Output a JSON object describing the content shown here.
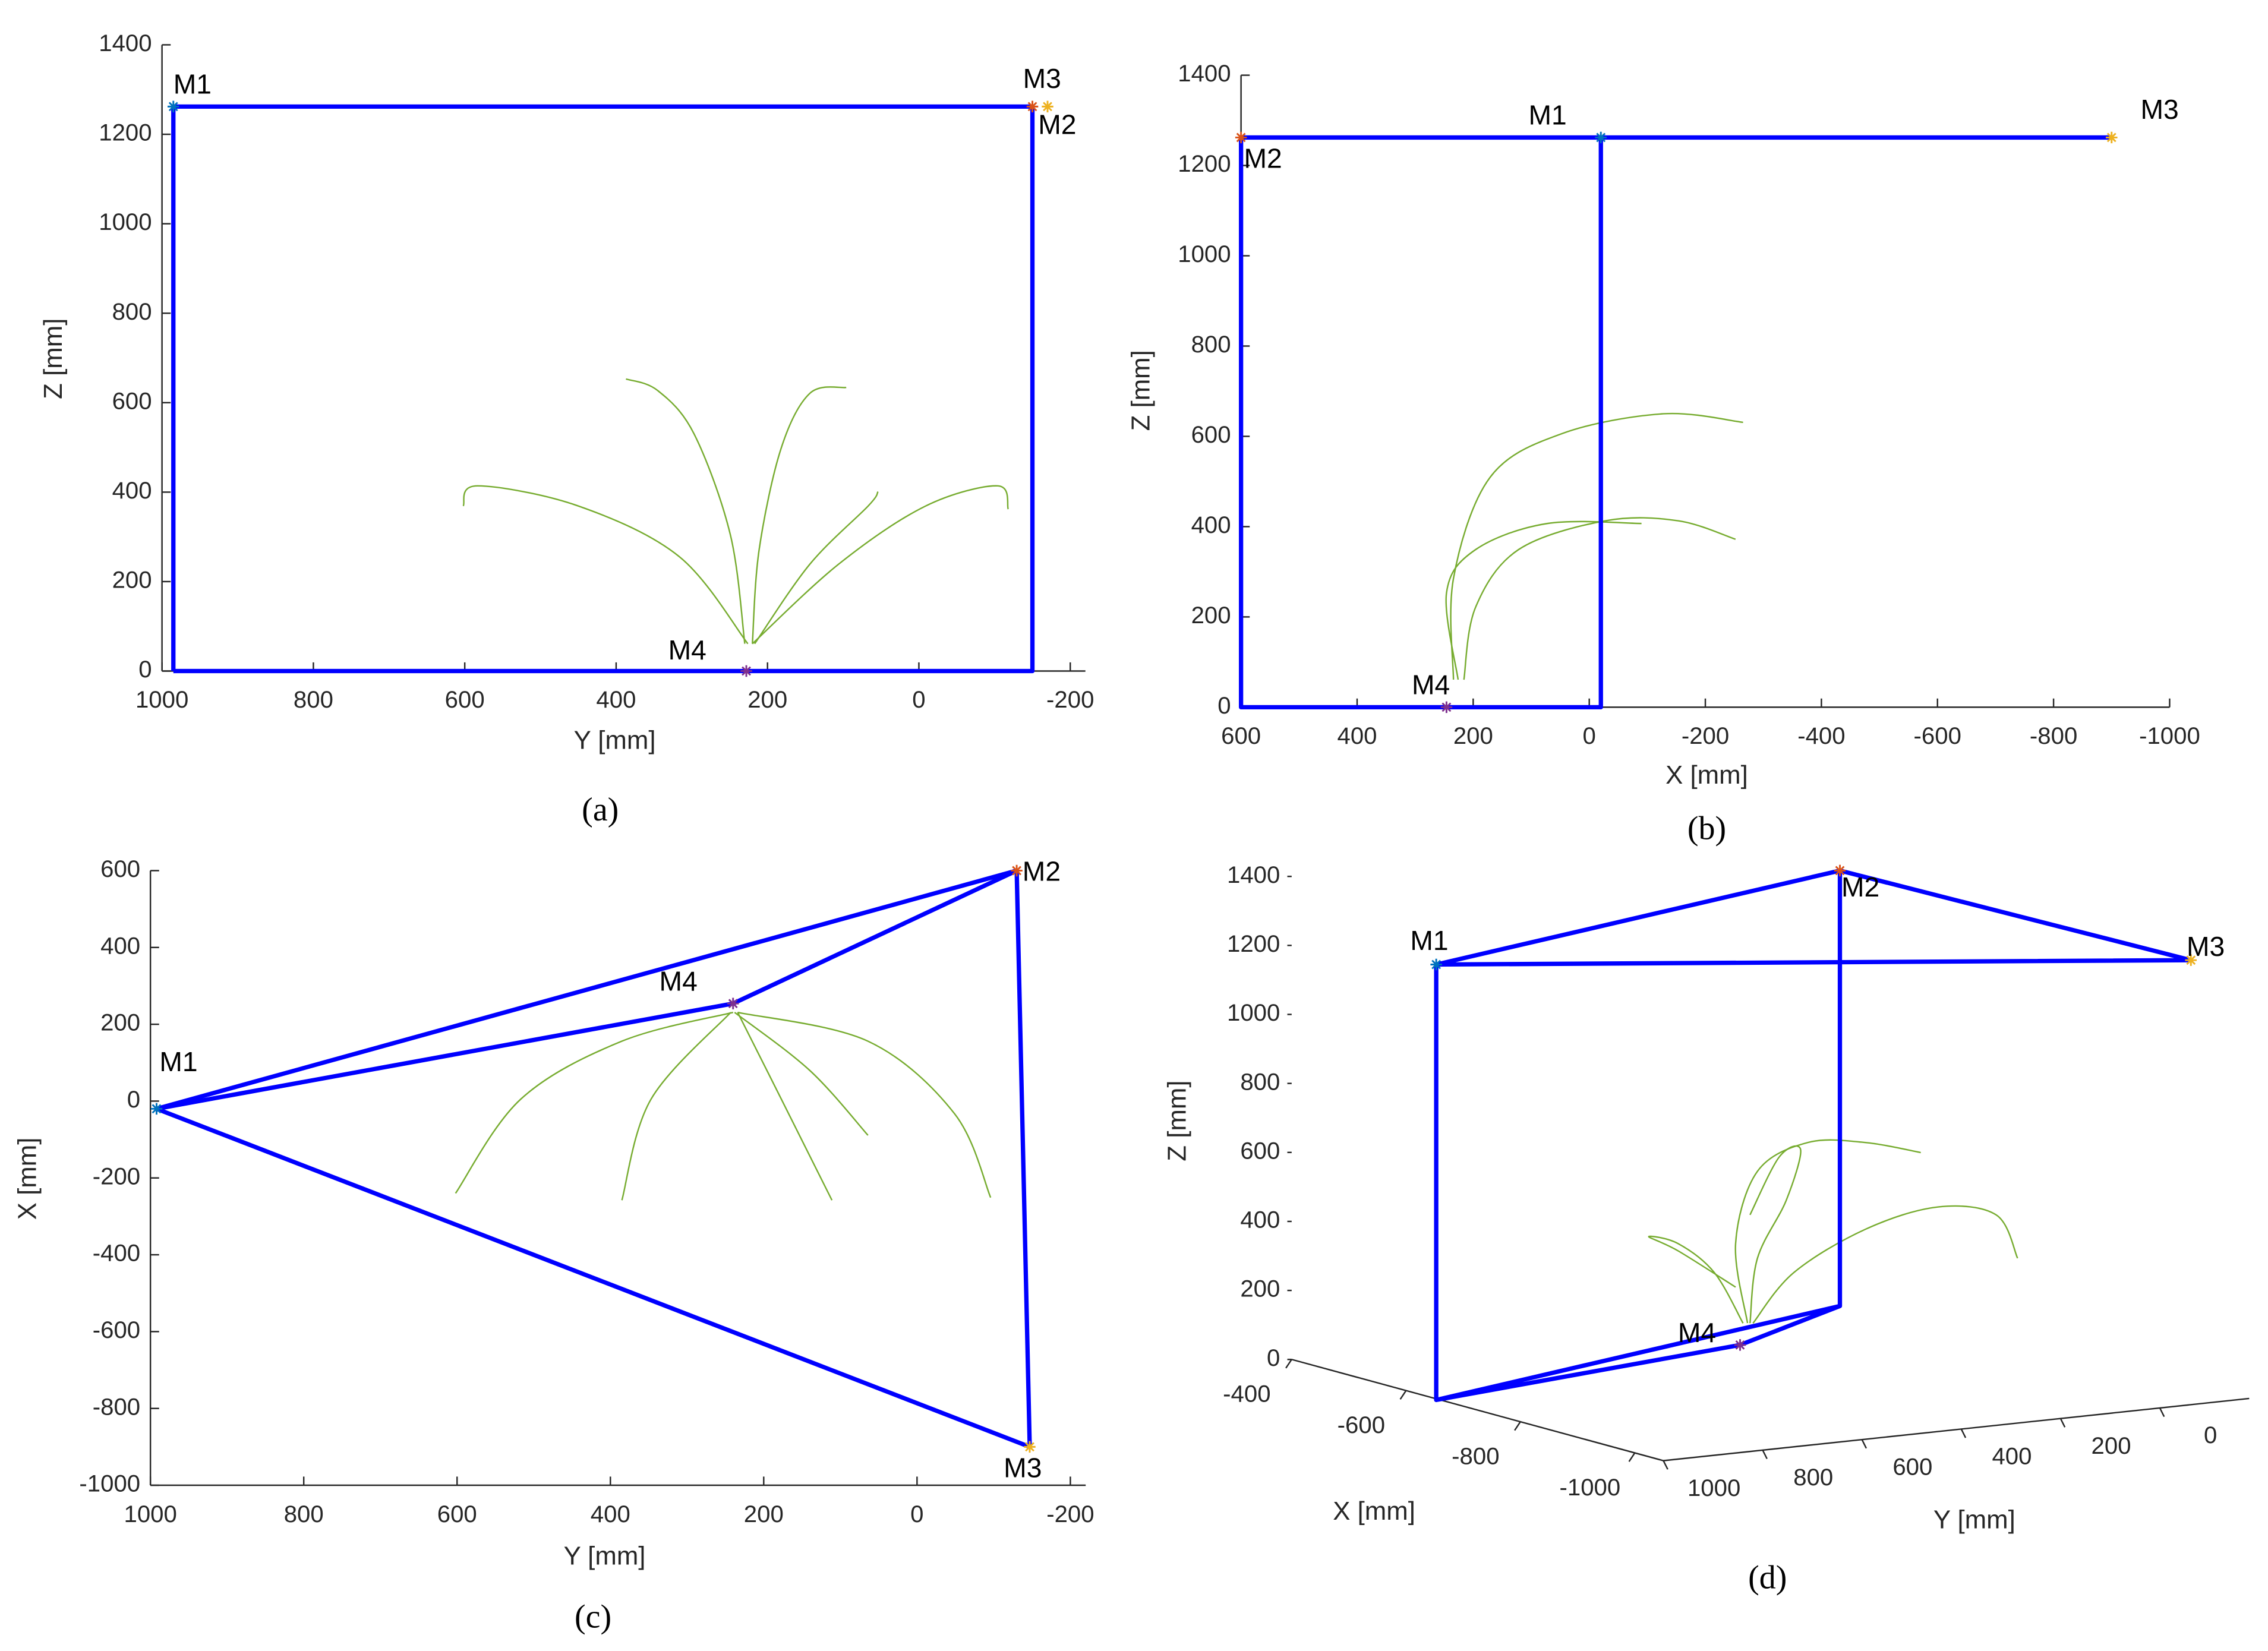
{
  "chart_data": [
    {
      "type": "line",
      "caption": "(a)",
      "xlabel": "Y [mm]",
      "ylabel": "Z [mm]",
      "xlim": [
        1000,
        -220
      ],
      "ylim": [
        0,
        1400
      ],
      "xticks": [
        1000,
        800,
        600,
        400,
        200,
        0,
        -200
      ],
      "yticks": [
        0,
        200,
        400,
        600,
        800,
        1000,
        1200,
        1400
      ],
      "lines": [
        {
          "color": "#0000ff",
          "x": [
            985,
            985,
            -150,
            -150,
            985
          ],
          "y": [
            0,
            1262,
            1262,
            0,
            0
          ]
        },
        {
          "color": "#77ac30",
          "x": [
            226,
            316,
            450,
            583,
            602
          ],
          "y": [
            61,
            255,
            369,
            414,
            369
          ]
        },
        {
          "color": "#77ac30",
          "x": [
            220,
            106,
            -9,
            -104,
            -118
          ],
          "y": [
            61,
            239,
            369,
            414,
            362
          ]
        },
        {
          "color": "#77ac30",
          "x": [
            230,
            249,
            297,
            345,
            387
          ],
          "y": [
            61,
            304,
            530,
            627,
            653
          ]
        },
        {
          "color": "#77ac30",
          "x": [
            220,
            211,
            182,
            144,
            96
          ],
          "y": [
            61,
            272,
            498,
            621,
            634
          ]
        },
        {
          "color": "#77ac30",
          "x": [
            217,
            144,
            67,
            54
          ],
          "y": [
            61,
            239,
            369,
            401
          ]
        }
      ],
      "markers": [
        {
          "label": "M1",
          "color": "#0072bd",
          "x": 985,
          "y": 1262
        },
        {
          "label": "M2",
          "color": "#d95319",
          "x": -150,
          "y": 1262
        },
        {
          "label": "M3",
          "color": "#edb120",
          "x": -170,
          "y": 1262
        },
        {
          "label": "M4",
          "color": "#7e2f8e",
          "x": 228,
          "y": 0
        }
      ]
    },
    {
      "type": "line",
      "caption": "(b)",
      "xlabel": "X [mm]",
      "ylabel": "Z [mm]",
      "xlim": [
        600,
        -1000
      ],
      "ylim": [
        0,
        1400
      ],
      "xticks": [
        600,
        400,
        200,
        0,
        -200,
        -400,
        -600,
        -800,
        -1000
      ],
      "yticks": [
        0,
        200,
        400,
        600,
        800,
        1000,
        1200,
        1400
      ],
      "lines": [
        {
          "color": "#0000ff",
          "x": [
            -900,
            600,
            600,
            -20,
            -20
          ],
          "y": [
            1262,
            1262,
            0,
            0,
            1262
          ]
        },
        {
          "color": "#77ac30",
          "x": [
            234,
            234,
            171,
            47,
            -128,
            -265
          ],
          "y": [
            61,
            285,
            509,
            606,
            650,
            631
          ]
        },
        {
          "color": "#77ac30",
          "x": [
            216,
            196,
            122,
            -28,
            -153,
            -252
          ],
          "y": [
            61,
            221,
            349,
            413,
            413,
            372
          ]
        },
        {
          "color": "#77ac30",
          "x": [
            226,
            246,
            196,
            72,
            -90
          ],
          "y": [
            61,
            253,
            349,
            407,
            407
          ]
        }
      ],
      "markers": [
        {
          "label": "M1",
          "color": "#0072bd",
          "x": -20,
          "y": 1262
        },
        {
          "label": "M2",
          "color": "#d95319",
          "x": 600,
          "y": 1262
        },
        {
          "label": "M3",
          "color": "#edb120",
          "x": -900,
          "y": 1262
        },
        {
          "label": "M4",
          "color": "#7e2f8e",
          "x": 246,
          "y": 0
        }
      ]
    },
    {
      "type": "line",
      "caption": "(c)",
      "xlabel": "Y [mm]",
      "ylabel": "X [mm]",
      "xlim": [
        1000,
        -220
      ],
      "ylim": [
        -1000,
        600
      ],
      "xticks": [
        1000,
        800,
        600,
        400,
        200,
        0,
        -200
      ],
      "yticks": [
        -1000,
        -800,
        -600,
        -400,
        -200,
        0,
        200,
        400,
        600
      ],
      "lines": [
        {
          "color": "#0000ff",
          "x": [
            992,
            -130,
            -147,
            992
          ],
          "y": [
            -20,
            600,
            -900,
            -20
          ]
        },
        {
          "color": "#0000ff",
          "x": [
            992,
            240,
            -130
          ],
          "y": [
            -20,
            254,
            600
          ]
        },
        {
          "color": "#77ac30",
          "x": [
            240,
            385,
            517,
            602
          ],
          "y": [
            231,
            156,
            5,
            -240
          ]
        },
        {
          "color": "#77ac30",
          "x": [
            234,
            64,
            -49,
            -96
          ],
          "y": [
            231,
            156,
            -33,
            -251
          ]
        },
        {
          "color": "#77ac30",
          "x": [
            243,
            347,
            385
          ],
          "y": [
            231,
            5,
            -258
          ]
        },
        {
          "color": "#77ac30",
          "x": [
            234,
            177,
            111
          ],
          "y": [
            231,
            5,
            -258
          ]
        },
        {
          "color": "#77ac30",
          "x": [
            238,
            140,
            64
          ],
          "y": [
            231,
            80,
            -89
          ]
        }
      ],
      "markers": [
        {
          "label": "M1",
          "color": "#0072bd",
          "x": 992,
          "y": -20
        },
        {
          "label": "M2",
          "color": "#d95319",
          "x": -130,
          "y": 600
        },
        {
          "label": "M3",
          "color": "#edb120",
          "x": -147,
          "y": -900
        },
        {
          "label": "M4",
          "color": "#7e2f8e",
          "x": 240,
          "y": 254
        }
      ]
    },
    {
      "type": "line3d",
      "caption": "(d)",
      "xlabel": "X [mm]",
      "ylabel": "Y [mm]",
      "zlabel": "Z [mm]",
      "xlim": [
        -400,
        -1050
      ],
      "ylim": [
        1000,
        -180
      ],
      "zlim": [
        0,
        1400
      ],
      "xticks": [
        -400,
        -600,
        -800,
        -1000
      ],
      "yticks": [
        1000,
        800,
        600,
        400,
        200,
        0
      ],
      "zticks": [
        0,
        200,
        400,
        600,
        800,
        1000,
        1200,
        1400
      ],
      "lines": [
        {
          "color": "#0000ff",
          "x": [
            -658,
            -658,
            -422,
            -1008,
            -658
          ],
          "y": [
            1006,
            1006,
            -79,
            -111,
            1006
          ],
          "z": [
            0,
            1262,
            1262,
            1262,
            1262
          ]
        },
        {
          "color": "#0000ff",
          "x": [
            -422,
            -422,
            -553,
            -658,
            -422
          ],
          "y": [
            -79,
            -79,
            273,
            1006,
            -79
          ],
          "z": [
            1262,
            0,
            0,
            0,
            0
          ]
        },
        {
          "color": "#77ac30",
          "x": [
            -553,
            -553,
            -553,
            -553,
            -553,
            -553
          ],
          "y": [
            258,
            282,
            238,
            136,
            20,
            -91
          ],
          "z": [
            61,
            295,
            498,
            566,
            548,
            502
          ]
        },
        {
          "color": "#77ac30",
          "x": [
            -553,
            -553,
            -553,
            -553,
            -553,
            -553
          ],
          "y": [
            247,
            165,
            20,
            -126,
            -243,
            -286
          ],
          "z": [
            59,
            193,
            297,
            339,
            298,
            166
          ]
        },
        {
          "color": "#77ac30",
          "x": [
            -553,
            -553,
            -553,
            -553,
            -553,
            -553
          ],
          "y": [
            267,
            325,
            398,
            457,
            398,
            282
          ],
          "z": [
            62,
            218,
            313,
            342,
            292,
            169
          ]
        },
        {
          "color": "#77ac30",
          "x": [
            -553,
            -553,
            -553,
            -553,
            -553,
            -553
          ],
          "y": [
            253,
            238,
            180,
            151,
            194,
            253
          ],
          "z": [
            60,
            246,
            405,
            547,
            533,
            374
          ]
        }
      ],
      "markers": [
        {
          "label": "M1",
          "color": "#0072bd",
          "x": -658,
          "y": 1006,
          "z": 1262
        },
        {
          "label": "M2",
          "color": "#d95319",
          "x": -422,
          "y": -79,
          "z": 1262
        },
        {
          "label": "M3",
          "color": "#edb120",
          "x": -1008,
          "y": -111,
          "z": 1262
        },
        {
          "label": "M4",
          "color": "#7e2f8e",
          "x": -553,
          "y": 273,
          "z": 0
        }
      ]
    }
  ]
}
